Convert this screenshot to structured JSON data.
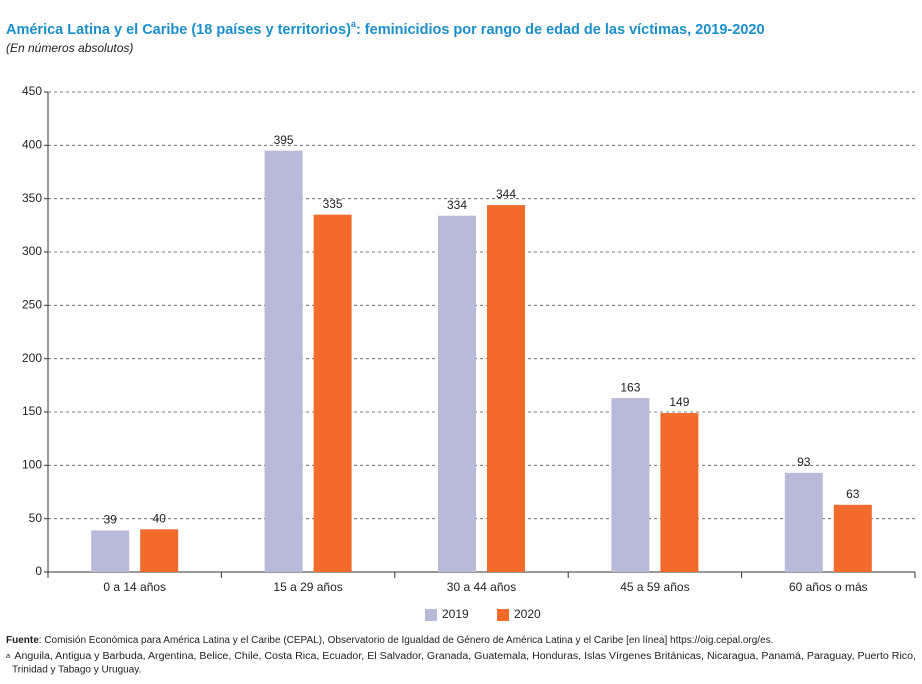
{
  "chart_data": {
    "type": "bar",
    "title": "América Latina y el Caribe (18 países y territorios)",
    "title_marker": "a",
    "title_rest": ": feminicidios por rango de edad de las víctimas, 2019-2020",
    "subtitle": "(En números absolutos)",
    "categories": [
      "0 a 14 años",
      "15 a 29 años",
      "30 a 44 años",
      "45 a 59 años",
      "60 años o más"
    ],
    "series": [
      {
        "name": "2019",
        "color": "#b9b9d9",
        "values": [
          39,
          395,
          334,
          163,
          93
        ]
      },
      {
        "name": "2020",
        "color": "#f26b2d",
        "values": [
          40,
          335,
          344,
          149,
          63
        ]
      }
    ],
    "ylim": [
      0,
      450
    ],
    "yticks": [
      0,
      50,
      100,
      150,
      200,
      250,
      300,
      350,
      400,
      450
    ],
    "grid": true,
    "legend": "bottom",
    "source_label": "Fuente",
    "source_text": ": Comisión Económica para América Latina y el Caribe (CEPAL), Observatorio de Igualdad de Género de América Latina y el Caribe [en línea] https://oig.cepal.org/es.",
    "note_marker": "a",
    "note_text_1": "Anguila, Antigua y Barbuda, Argentina, Belice, Chile, Costa Rica, Ecuador, El Salvador, Granada, Guatemala, Honduras, Islas Vírgenes Británicas, Nicaragua, Panamá, Paraguay, Puerto Rico,",
    "note_text_2": "Trinidad y Tabago y Uruguay."
  }
}
